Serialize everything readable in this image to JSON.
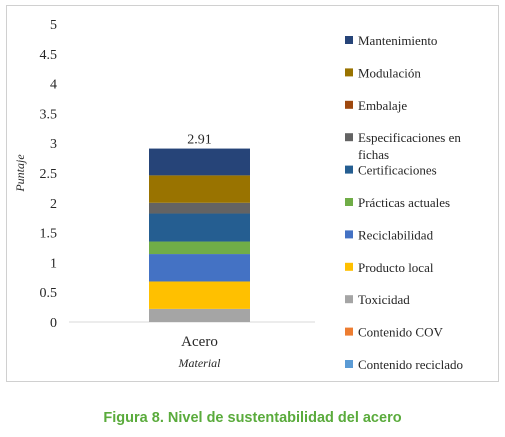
{
  "chart_data": {
    "type": "bar",
    "stacked": true,
    "categories": [
      "Acero"
    ],
    "xlabel": "Material",
    "ylabel": "Puntaje",
    "ylim": [
      0,
      5
    ],
    "yticks": [
      "0",
      "0.5",
      "1",
      "1.5",
      "2",
      "2.5",
      "3",
      "3.5",
      "4",
      "4.5",
      "5"
    ],
    "total_label": "2.91",
    "grid": false,
    "legend_position": "right",
    "series": [
      {
        "name": "Contenido reciclado",
        "values": [
          0.0
        ],
        "color": "#5b9bd5"
      },
      {
        "name": "Contenido COV",
        "values": [
          0.0
        ],
        "color": "#ed7d31"
      },
      {
        "name": "Toxicidad",
        "values": [
          0.22
        ],
        "color": "#a5a5a5"
      },
      {
        "name": "Producto local",
        "values": [
          0.46
        ],
        "color": "#ffc000"
      },
      {
        "name": "Reciclabilidad",
        "values": [
          0.46
        ],
        "color": "#4472c4"
      },
      {
        "name": "Prácticas actuales",
        "values": [
          0.21
        ],
        "color": "#70ad47"
      },
      {
        "name": "Certificaciones",
        "values": [
          0.47
        ],
        "color": "#255e91"
      },
      {
        "name": "Especificaciones en fichas",
        "values": [
          0.18
        ],
        "color": "#636363"
      },
      {
        "name": "Embalaje",
        "values": [
          0.0
        ],
        "color": "#9e480e"
      },
      {
        "name": "Modulación",
        "values": [
          0.46
        ],
        "color": "#997300"
      },
      {
        "name": "Mantenimiento",
        "values": [
          0.45
        ],
        "color": "#264478"
      }
    ]
  },
  "caption": {
    "text": "Figura 8. Nivel de sustentabilidad del acero",
    "color": "#5aab3c"
  }
}
